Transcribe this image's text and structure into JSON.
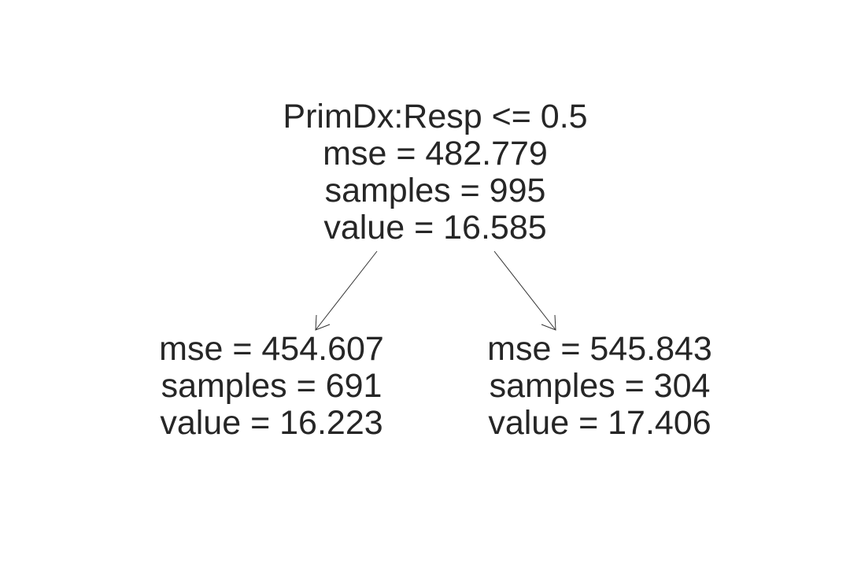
{
  "tree": {
    "root": {
      "split": "PrimDx:Resp <= 0.5",
      "mse": "mse = 482.779",
      "samples": "samples = 995",
      "value": "value = 16.585"
    },
    "left": {
      "mse": "mse = 454.607",
      "samples": "samples = 691",
      "value": "value = 16.223"
    },
    "right": {
      "mse": "mse = 545.843",
      "samples": "samples = 304",
      "value": "value = 17.406"
    },
    "edge_color": "#333333",
    "text_color": "#262626"
  }
}
